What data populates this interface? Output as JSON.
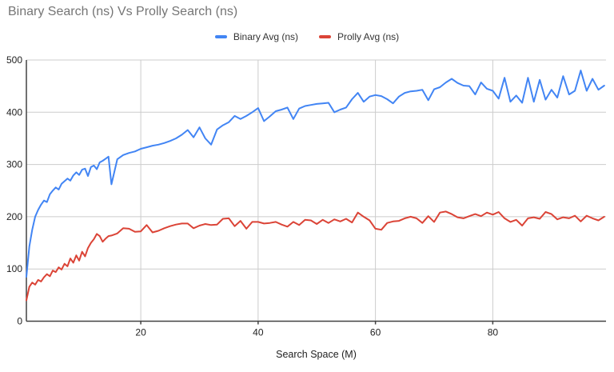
{
  "title": "Binary Search (ns) Vs Prolly Search (ns)",
  "chart_data": {
    "type": "line",
    "title": "Binary Search (ns) Vs Prolly Search (ns)",
    "xlabel": "Search Space (M)",
    "ylabel": "",
    "legend_position": "top",
    "grid": true,
    "x_range": [
      0.5,
      99.3
    ],
    "y_range": [
      0,
      500
    ],
    "x_ticks": [
      20,
      40,
      60,
      80
    ],
    "y_ticks": [
      0,
      100,
      200,
      300,
      400,
      500
    ],
    "axis_color": "#424242",
    "gridline_color": "#cccccc",
    "x": [
      0.5,
      1,
      1.5,
      2,
      2.5,
      3,
      3.5,
      4,
      4.5,
      5,
      5.5,
      6,
      6.5,
      7,
      7.5,
      8,
      8.5,
      9,
      9.5,
      10,
      10.5,
      11,
      11.5,
      12,
      12.5,
      13,
      13.5,
      14,
      14.5,
      15,
      16,
      17,
      18,
      19,
      20,
      21,
      22,
      23,
      24,
      25,
      26,
      27,
      28,
      29,
      30,
      31,
      32,
      33,
      34,
      35,
      36,
      37,
      38,
      39,
      40,
      41,
      42,
      43,
      44,
      45,
      46,
      47,
      48,
      49,
      50,
      51,
      52,
      53,
      54,
      55,
      56,
      57,
      58,
      59,
      60,
      61,
      62,
      63,
      64,
      65,
      66,
      67,
      68,
      69,
      70,
      71,
      72,
      73,
      74,
      75,
      76,
      77,
      78,
      79,
      80,
      81,
      82,
      83,
      84,
      85,
      86,
      87,
      88,
      89,
      90,
      91,
      92,
      93,
      94,
      95,
      96,
      97,
      98,
      99
    ],
    "series": [
      {
        "name": "Binary Avg (ns)",
        "color": "#4285F4",
        "values": [
          85,
          143,
          175,
          200,
          213,
          223,
          231,
          228,
          243,
          250,
          256,
          252,
          263,
          268,
          273,
          269,
          279,
          285,
          280,
          290,
          292,
          278,
          295,
          298,
          291,
          304,
          307,
          311,
          315,
          262,
          310,
          318,
          322,
          325,
          330,
          333,
          336,
          338,
          341,
          345,
          350,
          357,
          366,
          352,
          371,
          350,
          338,
          367,
          375,
          381,
          393,
          387,
          393,
          400,
          408,
          383,
          392,
          402,
          405,
          409,
          387,
          407,
          412,
          414,
          416,
          417,
          418,
          400,
          405,
          409,
          425,
          437,
          420,
          430,
          433,
          431,
          425,
          417,
          430,
          437,
          440,
          441,
          443,
          423,
          444,
          448,
          457,
          464,
          456,
          451,
          450,
          434,
          457,
          445,
          441,
          426,
          466,
          420,
          432,
          418,
          466,
          420,
          462,
          424,
          443,
          428,
          469,
          434,
          441,
          480,
          441,
          464,
          443,
          451
        ]
      },
      {
        "name": "Prolly Avg (ns)",
        "color": "#DB4437",
        "values": [
          40,
          66,
          74,
          70,
          79,
          76,
          84,
          90,
          86,
          97,
          94,
          103,
          99,
          110,
          105,
          120,
          112,
          126,
          116,
          133,
          124,
          140,
          150,
          157,
          167,
          163,
          152,
          158,
          163,
          164,
          168,
          178,
          177,
          171,
          172,
          184,
          170,
          173,
          178,
          182,
          185,
          187,
          187,
          178,
          183,
          186,
          184,
          185,
          196,
          197,
          182,
          192,
          177,
          190,
          190,
          187,
          188,
          190,
          185,
          181,
          190,
          184,
          194,
          193,
          186,
          194,
          188,
          195,
          191,
          196,
          189,
          208,
          200,
          193,
          177,
          175,
          188,
          191,
          192,
          197,
          200,
          197,
          188,
          201,
          190,
          208,
          210,
          205,
          199,
          197,
          201,
          205,
          201,
          208,
          204,
          209,
          197,
          190,
          194,
          183,
          197,
          199,
          196,
          209,
          205,
          195,
          199,
          197,
          202,
          191,
          202,
          197,
          193,
          200
        ]
      }
    ]
  }
}
